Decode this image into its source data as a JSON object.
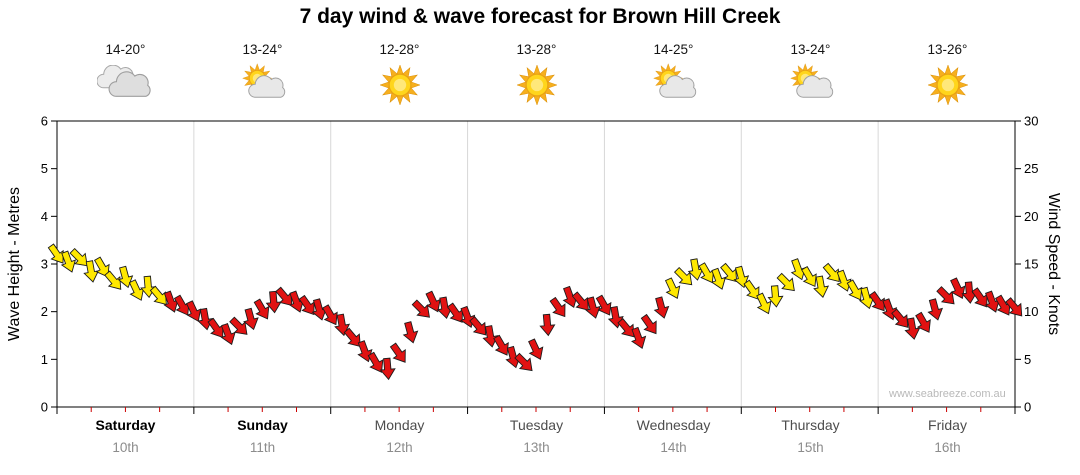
{
  "title": "7 day wind & wave forecast for Brown Hill Creek",
  "watermark": "www.seabreeze.com.au",
  "axes": {
    "left": {
      "title": "Wave Height - Metres",
      "ticks": [
        0,
        1,
        2,
        3,
        4,
        5,
        6
      ],
      "range": [
        0,
        6
      ]
    },
    "right": {
      "title": "Wind Speed - Knots",
      "ticks": [
        0,
        5,
        10,
        15,
        20,
        25,
        30
      ],
      "range": [
        0,
        30
      ]
    }
  },
  "days": [
    {
      "name": "Saturday",
      "date": "10th",
      "temp": "14-20°",
      "icon": "cloudy",
      "weekend": true
    },
    {
      "name": "Sunday",
      "date": "11th",
      "temp": "13-24°",
      "icon": "sun-cloud",
      "weekend": true
    },
    {
      "name": "Monday",
      "date": "12th",
      "temp": "12-28°",
      "icon": "sunny",
      "weekend": false
    },
    {
      "name": "Tuesday",
      "date": "13th",
      "temp": "13-28°",
      "icon": "sunny",
      "weekend": false
    },
    {
      "name": "Wednesday",
      "date": "14th",
      "temp": "14-25°",
      "icon": "sun-cloud",
      "weekend": false
    },
    {
      "name": "Thursday",
      "date": "15th",
      "temp": "13-24°",
      "icon": "sun-cloud",
      "weekend": false
    },
    {
      "name": "Friday",
      "date": "16th",
      "temp": "13-26°",
      "icon": "sunny",
      "weekend": false
    }
  ],
  "colors": {
    "yellow": "#ffe800",
    "red": "#e11212",
    "arrow_outline": "#1c1c1c",
    "grid": "#d8d8d8",
    "axis": "#000000",
    "minor_tick": "#cc0000",
    "weekend_label": "#000000",
    "weekday_label": "#4d4d4d",
    "date_label": "#8c8c8c",
    "watermark": "#b9b9b9"
  },
  "chart_data": {
    "type": "wind-arrow-series",
    "x_axis": "time, Saturday 10th 00:00 to Friday 16th 24:00 (2-hour steps)",
    "y_right_axis": "Wind Speed - Knots (0-30)",
    "y_left_axis": "Wave Height - Metres (0-6, 1 m = 5 kn on shared scale)",
    "legend_note": "yellow arrows = moderate wind periods, red arrows = remaining periods; arrows rotated by wind direction",
    "points_format": [
      "hour_from_saturday_0000",
      "wind_knots",
      "arrow_dir_deg",
      "color_key"
    ],
    "points": [
      [
        0,
        16,
        55,
        "y"
      ],
      [
        2,
        15.2,
        70,
        "y"
      ],
      [
        4,
        15.6,
        45,
        "y"
      ],
      [
        6,
        14.2,
        80,
        "y"
      ],
      [
        8,
        14.6,
        60,
        "y"
      ],
      [
        10,
        13.2,
        50,
        "y"
      ],
      [
        12,
        13.6,
        75,
        "y"
      ],
      [
        14,
        12.2,
        65,
        "y"
      ],
      [
        16,
        12.6,
        85,
        "y"
      ],
      [
        18,
        11.6,
        50,
        "y"
      ],
      [
        20,
        11,
        70,
        "r"
      ],
      [
        22,
        10.6,
        60,
        "r"
      ],
      [
        24,
        10,
        65,
        "r"
      ],
      [
        26,
        9.2,
        80,
        "r"
      ],
      [
        28,
        8.2,
        55,
        "r"
      ],
      [
        30,
        7.6,
        70,
        "r"
      ],
      [
        32,
        8.4,
        45,
        "r"
      ],
      [
        34,
        9.2,
        75,
        "r"
      ],
      [
        36,
        10.2,
        60,
        "r"
      ],
      [
        38,
        11,
        85,
        "r"
      ],
      [
        40,
        11.5,
        50,
        "r"
      ],
      [
        42,
        11,
        70,
        "r"
      ],
      [
        44,
        10.6,
        55,
        "r"
      ],
      [
        46,
        10.2,
        75,
        "r"
      ],
      [
        48,
        9.6,
        60,
        "r"
      ],
      [
        50,
        8.6,
        80,
        "r"
      ],
      [
        52,
        7.2,
        50,
        "r"
      ],
      [
        54,
        5.8,
        70,
        "r"
      ],
      [
        56,
        4.6,
        60,
        "r"
      ],
      [
        58,
        4,
        85,
        "r"
      ],
      [
        60,
        5.6,
        55,
        "r"
      ],
      [
        62,
        7.8,
        75,
        "r"
      ],
      [
        64,
        10.2,
        45,
        "r"
      ],
      [
        66,
        11,
        65,
        "r"
      ],
      [
        68,
        10.4,
        80,
        "r"
      ],
      [
        70,
        9.8,
        55,
        "r"
      ],
      [
        72,
        9.4,
        70,
        "r"
      ],
      [
        74,
        8.4,
        50,
        "r"
      ],
      [
        76,
        7.4,
        80,
        "r"
      ],
      [
        78,
        6.4,
        60,
        "r"
      ],
      [
        80,
        5.2,
        75,
        "r"
      ],
      [
        82,
        4.6,
        45,
        "r"
      ],
      [
        84,
        6,
        65,
        "r"
      ],
      [
        86,
        8.6,
        85,
        "r"
      ],
      [
        88,
        10.4,
        55,
        "r"
      ],
      [
        90,
        11.5,
        70,
        "r"
      ],
      [
        92,
        11,
        50,
        "r"
      ],
      [
        94,
        10.4,
        75,
        "r"
      ],
      [
        96,
        10.6,
        60,
        "r"
      ],
      [
        98,
        9.4,
        80,
        "r"
      ],
      [
        100,
        8.2,
        50,
        "r"
      ],
      [
        102,
        7.2,
        70,
        "r"
      ],
      [
        104,
        8.6,
        55,
        "r"
      ],
      [
        106,
        10.4,
        75,
        "r"
      ],
      [
        108,
        12.4,
        65,
        "y"
      ],
      [
        110,
        13.6,
        45,
        "y"
      ],
      [
        112,
        14.4,
        80,
        "y"
      ],
      [
        114,
        14,
        60,
        "y"
      ],
      [
        116,
        13.4,
        70,
        "y"
      ],
      [
        118,
        14,
        50,
        "y"
      ],
      [
        120,
        13.6,
        75,
        "y"
      ],
      [
        122,
        12.2,
        55,
        "y"
      ],
      [
        124,
        10.8,
        65,
        "y"
      ],
      [
        126,
        11.6,
        85,
        "y"
      ],
      [
        128,
        13,
        45,
        "y"
      ],
      [
        130,
        14.4,
        70,
        "y"
      ],
      [
        132,
        13.6,
        60,
        "y"
      ],
      [
        134,
        12.6,
        80,
        "y"
      ],
      [
        136,
        14,
        50,
        "y"
      ],
      [
        138,
        13.2,
        70,
        "y"
      ],
      [
        140,
        12.2,
        60,
        "y"
      ],
      [
        142,
        11.4,
        75,
        "y"
      ],
      [
        144,
        11,
        55,
        "r"
      ],
      [
        146,
        10.2,
        70,
        "r"
      ],
      [
        148,
        9.2,
        50,
        "r"
      ],
      [
        150,
        8.2,
        80,
        "r"
      ],
      [
        152,
        8.8,
        60,
        "r"
      ],
      [
        154,
        10.2,
        75,
        "r"
      ],
      [
        156,
        11.6,
        45,
        "r"
      ],
      [
        158,
        12.4,
        65,
        "r"
      ],
      [
        160,
        12,
        85,
        "r"
      ],
      [
        162,
        11.4,
        55,
        "r"
      ],
      [
        164,
        11,
        70,
        "r"
      ],
      [
        166,
        10.6,
        60,
        "r"
      ],
      [
        168,
        10.4,
        50,
        "r"
      ]
    ]
  }
}
